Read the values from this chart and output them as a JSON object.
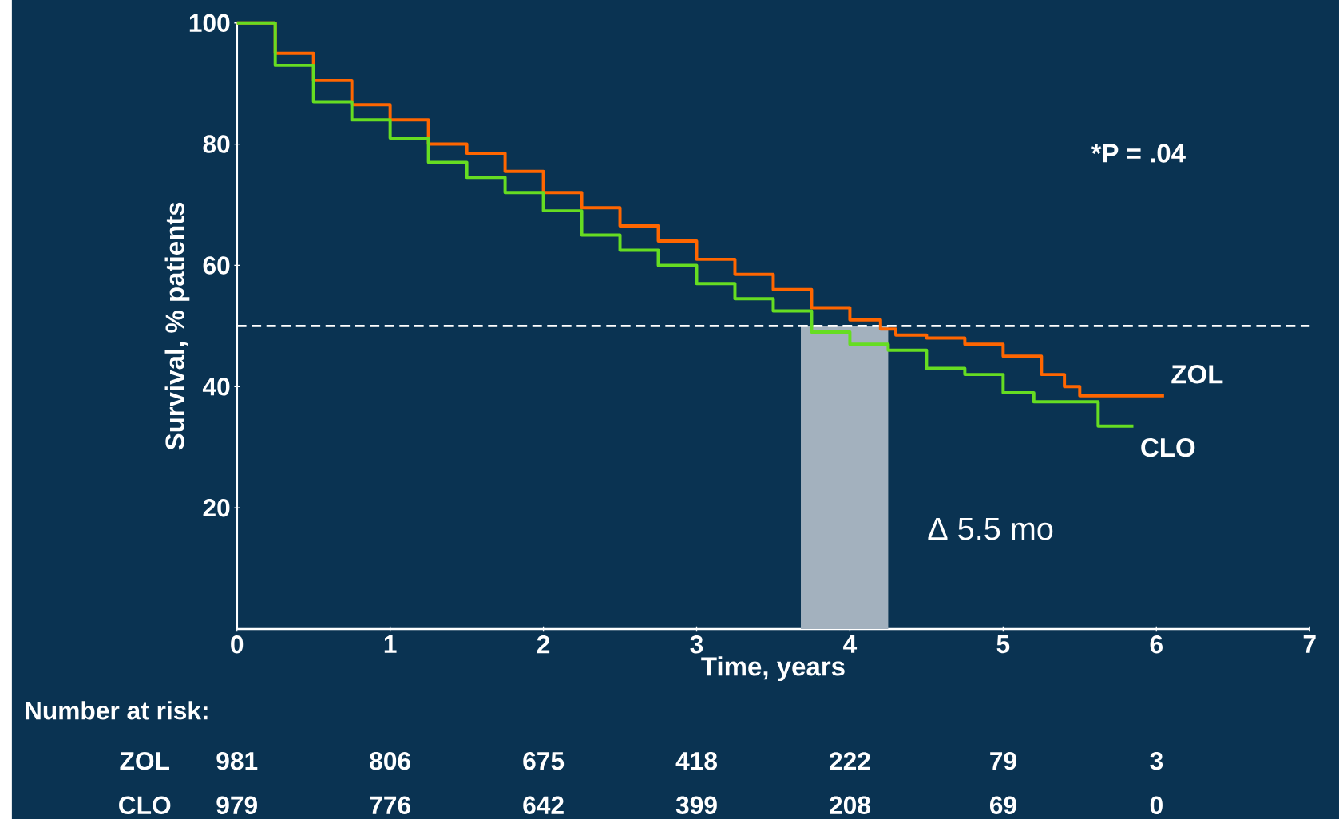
{
  "chart_data": {
    "type": "step",
    "ylabel": "Survival, % patients",
    "xlabel": "Time, years",
    "xlim": [
      0,
      7
    ],
    "ylim": [
      0,
      100
    ],
    "xticks": [
      0,
      1,
      2,
      3,
      4,
      5,
      6,
      7
    ],
    "yticks": [
      20,
      40,
      60,
      80,
      100
    ],
    "series": [
      {
        "name": "ZOL",
        "color": "#ff6600",
        "x": [
          0,
          0.25,
          0.5,
          0.75,
          1,
          1.25,
          1.5,
          1.75,
          2,
          2.25,
          2.5,
          2.75,
          3,
          3.25,
          3.5,
          3.75,
          4,
          4.2,
          4.3,
          4.5,
          4.75,
          5,
          5.25,
          5.4,
          5.5,
          6.05
        ],
        "values": [
          100,
          95,
          90.5,
          86.5,
          84,
          80,
          78.5,
          75.5,
          72,
          69.5,
          66.5,
          64,
          61,
          58.5,
          56,
          53,
          51,
          49.5,
          48.5,
          48,
          47,
          45,
          42,
          40,
          38.5,
          38.5
        ]
      },
      {
        "name": "CLO",
        "color": "#66dd22",
        "x": [
          0,
          0.25,
          0.5,
          0.75,
          1,
          1.25,
          1.5,
          1.75,
          2,
          2.25,
          2.5,
          2.75,
          3,
          3.25,
          3.5,
          3.75,
          4,
          4.25,
          4.5,
          4.75,
          5,
          5.2,
          5.62,
          5.85
        ],
        "values": [
          100,
          93,
          87,
          84,
          81,
          77,
          74.5,
          72,
          69,
          65,
          62.5,
          60,
          57,
          54.5,
          52.5,
          49,
          47,
          46,
          43,
          42,
          39,
          37.5,
          33.5,
          33.5
        ]
      }
    ],
    "ref_lines": [
      {
        "axis": "y",
        "value": 50,
        "color": "#ffffff",
        "line_style": "dashed"
      }
    ],
    "bands": [
      {
        "axis": "x",
        "from": 3.68,
        "to": 4.25,
        "color": "#a3b1be"
      }
    ],
    "annotations": [
      "*P = .04",
      "Δ 5.5 mo",
      "Number at risk:",
      "ZOL",
      "981",
      "806",
      "675",
      "418",
      "222",
      "79",
      "3",
      "CLO",
      "979",
      "776",
      "642",
      "399",
      "208",
      "69",
      "0"
    ]
  }
}
